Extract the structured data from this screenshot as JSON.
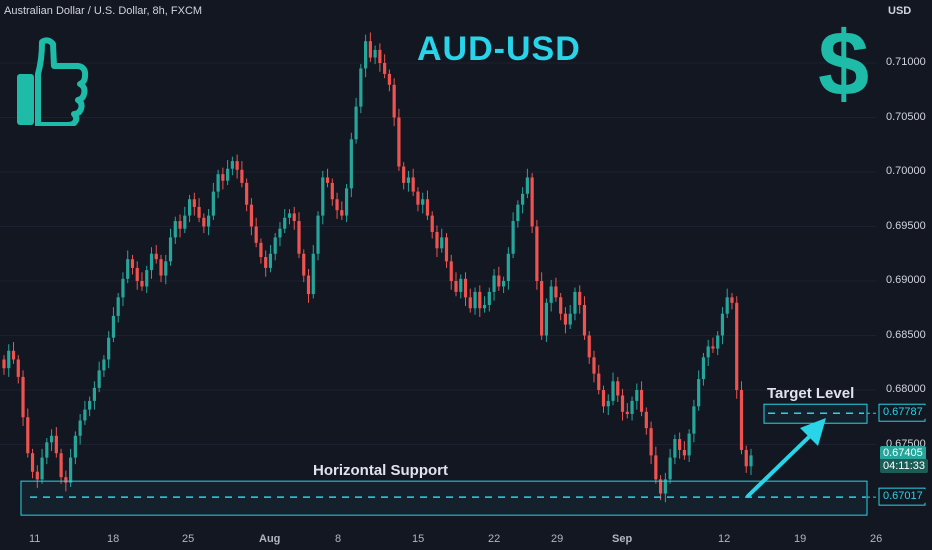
{
  "header": {
    "symbol_line": "Australian Dollar / U.S. Dollar, 8h, FXCM",
    "currency": "USD"
  },
  "overlay": {
    "title": "AUD-USD",
    "dollar_symbol": "$",
    "icons": [
      "thumbs-up-icon",
      "dollar-sign-icon"
    ]
  },
  "annotations": {
    "support_label": "Horizontal Support",
    "target_label": "Target Level"
  },
  "price_tags": {
    "target": "0.67787",
    "current_price": "0.67405",
    "countdown": "04:11:33",
    "support": "0.67017"
  },
  "colors": {
    "background": "#131722",
    "bull": "#26a69a",
    "bear": "#ef5350",
    "accent": "#29d4e8"
  },
  "chart_data": {
    "type": "candlestick",
    "title": "AUD-USD",
    "interval": "8h",
    "y_axis": {
      "ticks": [
        "0.71000",
        "0.70500",
        "0.70000",
        "0.69500",
        "0.69000",
        "0.68500",
        "0.68000",
        "0.67500"
      ],
      "range": [
        0.6677,
        0.7148
      ]
    },
    "x_axis": {
      "ticks": [
        "11",
        "18",
        "25",
        "Aug",
        "8",
        "15",
        "22",
        "29",
        "Sep",
        "12",
        "19",
        "26"
      ]
    },
    "support_level": 0.67017,
    "target_level": 0.67787,
    "last_price": 0.67405,
    "closes": [
      0.682,
      0.6836,
      0.6828,
      0.6812,
      0.6775,
      0.6742,
      0.6725,
      0.6718,
      0.6738,
      0.6752,
      0.6758,
      0.6742,
      0.672,
      0.6715,
      0.6738,
      0.6758,
      0.6772,
      0.6782,
      0.679,
      0.6802,
      0.6818,
      0.6828,
      0.6848,
      0.6868,
      0.6885,
      0.6902,
      0.692,
      0.6912,
      0.69,
      0.6895,
      0.691,
      0.6925,
      0.692,
      0.6905,
      0.6918,
      0.694,
      0.6955,
      0.6948,
      0.696,
      0.6975,
      0.6968,
      0.6958,
      0.695,
      0.696,
      0.6982,
      0.6998,
      0.6992,
      0.7003,
      0.701,
      0.7002,
      0.699,
      0.697,
      0.695,
      0.6935,
      0.6922,
      0.6912,
      0.6925,
      0.694,
      0.6948,
      0.6958,
      0.6962,
      0.6955,
      0.6925,
      0.6905,
      0.6888,
      0.6925,
      0.696,
      0.6995,
      0.699,
      0.6975,
      0.6965,
      0.696,
      0.6985,
      0.703,
      0.706,
      0.7095,
      0.712,
      0.7105,
      0.7112,
      0.71,
      0.709,
      0.708,
      0.705,
      0.7005,
      0.699,
      0.6995,
      0.6982,
      0.697,
      0.6975,
      0.696,
      0.6945,
      0.693,
      0.694,
      0.6918,
      0.69,
      0.689,
      0.6902,
      0.6885,
      0.6875,
      0.689,
      0.6875,
      0.6878,
      0.689,
      0.6905,
      0.6895,
      0.69,
      0.6925,
      0.6955,
      0.697,
      0.698,
      0.6995,
      0.695,
      0.69,
      0.685,
      0.688,
      0.6895,
      0.6885,
      0.687,
      0.686,
      0.687,
      0.689,
      0.6878,
      0.685,
      0.683,
      0.6815,
      0.68,
      0.6785,
      0.679,
      0.6808,
      0.6795,
      0.678,
      0.6778,
      0.679,
      0.68,
      0.678,
      0.6765,
      0.674,
      0.6718,
      0.6705,
      0.6718,
      0.6738,
      0.6755,
      0.6745,
      0.674,
      0.676,
      0.6785,
      0.681,
      0.683,
      0.684,
      0.6838,
      0.685,
      0.687,
      0.6885,
      0.688,
      0.68,
      0.6745,
      0.673,
      0.674
    ]
  }
}
